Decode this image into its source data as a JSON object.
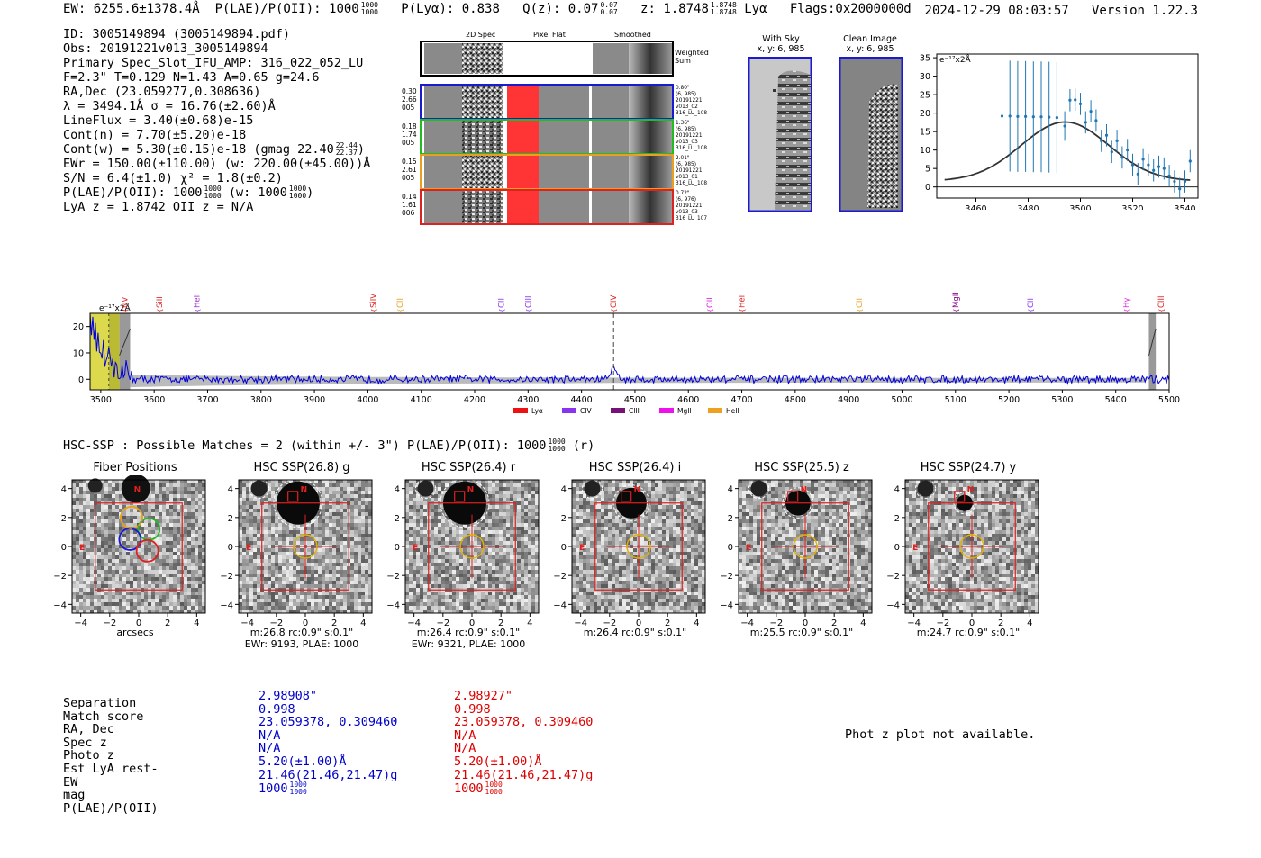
{
  "header": {
    "ew": "EW: 6255.6±1378.4Å",
    "plae_label": "P(LAE)/P(OII): 1000",
    "plae_hi": "1000",
    "plae_lo": "1000",
    "plya": "P(Lyα): 0.838",
    "qz": "Q(z): 0.07",
    "qz_hi": "0.07",
    "qz_lo": "0.07",
    "z": "z: 1.8748",
    "z_hi": "1.8748",
    "z_lo": "1.8748",
    "line": "Lyα",
    "flags": "Flags:0x2000000d",
    "datetime": "2024-12-29 08:03:57",
    "version": "Version 1.22.3"
  },
  "info": {
    "id": "ID: 3005149894 (3005149894.pdf)",
    "obs": "Obs: 20191221v013_3005149894",
    "primary": "Primary Spec_Slot_IFU_AMP: 316_022_052_LU",
    "fit": "F=2.3\"  T=0.129  N=1.43  A=0.65  g=24.6",
    "radec": "RA,Dec (23.059277,0.308636)",
    "lambda": "λ = 3494.1Å  σ = 16.76(±2.60)Å",
    "lineflux": "LineFlux = 3.40(±0.68)e-15",
    "contn": "Cont(n) = 7.70(±5.20)e-18",
    "contw": "Cont(w) = 5.30(±0.15)e-18 (gmag 22.40",
    "contw_hi": "22.44",
    "contw_lo": "22.37",
    "contw_end": ")",
    "ewr": "EWr = 150.00(±110.00) (w: 220.00(±45.00))Å",
    "sn": "S/N = 6.4(±1.0)  χ² = 1.8(±0.2)",
    "plae": "P(LAE)/P(OII): 1000",
    "plae_hi": "1000",
    "plae_lo": "1000",
    "plae_w": "(w: 1000",
    "plae_w_hi": "1000",
    "plae_w_lo": "1000",
    "plae_w_end": ")",
    "lya": "LyA z = 1.8742   OII z = N/A"
  },
  "cutouts": {
    "col_2d": "2D Spec",
    "col_flat": "Pixel Flat",
    "col_smooth": "Smoothed",
    "weighted": "Weighted Sum",
    "fibers": [
      {
        "w": "0.30",
        "a": "2.66",
        "n": "005",
        "side": [
          "0.80\"",
          "(6, 985)",
          "20191221",
          "v013_02",
          "316_LU_108"
        ],
        "color": "#1a1ad0"
      },
      {
        "w": "0.18",
        "a": "1.74",
        "n": "005",
        "side": [
          "1.36\"",
          "(6, 985)",
          "20191221",
          "v013_03",
          "316_LU_108"
        ],
        "color": "#22bb22"
      },
      {
        "w": "0.15",
        "a": "2.61",
        "n": "005",
        "side": [
          "2.01\"",
          "(6, 985)",
          "20191221",
          "v013_01",
          "316_LU_108"
        ],
        "color": "#e8a020"
      },
      {
        "w": "0.14",
        "a": "1.61",
        "n": "006",
        "side": [
          "0.72\"",
          "(6, 976)",
          "20191221",
          "v013_03",
          "316_LU_107"
        ],
        "color": "#dd2222"
      }
    ],
    "with_sky": "With Sky",
    "with_sky_xy": "x, y: 6, 985",
    "clean": "Clean Image",
    "clean_xy": "x, y: 6, 985"
  },
  "zoom_chart_data": {
    "type": "scatter",
    "unit_label": "e⁻¹⁷x2Å",
    "xlim": [
      3445,
      3545
    ],
    "ylim": [
      -3,
      36
    ],
    "xticks": [
      3460,
      3480,
      3500,
      3520,
      3540
    ],
    "yticks": [
      0,
      5,
      10,
      15,
      20,
      25,
      30,
      35
    ],
    "points": [
      {
        "x": 3470,
        "y": 19.2,
        "err": 15
      },
      {
        "x": 3473,
        "y": 19.2,
        "err": 15
      },
      {
        "x": 3476,
        "y": 19.1,
        "err": 15
      },
      {
        "x": 3479,
        "y": 19.1,
        "err": 15
      },
      {
        "x": 3482,
        "y": 19.0,
        "err": 15
      },
      {
        "x": 3485,
        "y": 19.0,
        "err": 15
      },
      {
        "x": 3488,
        "y": 18.9,
        "err": 15
      },
      {
        "x": 3491,
        "y": 18.8,
        "err": 15
      },
      {
        "x": 3494,
        "y": 16.5,
        "err": 4
      },
      {
        "x": 3496,
        "y": 23.5,
        "err": 3
      },
      {
        "x": 3498,
        "y": 23.6,
        "err": 3
      },
      {
        "x": 3500,
        "y": 22.5,
        "err": 3
      },
      {
        "x": 3502,
        "y": 17.5,
        "err": 3
      },
      {
        "x": 3504,
        "y": 20.5,
        "err": 3
      },
      {
        "x": 3506,
        "y": 18.0,
        "err": 3
      },
      {
        "x": 3508,
        "y": 12.5,
        "err": 3
      },
      {
        "x": 3510,
        "y": 14.0,
        "err": 3
      },
      {
        "x": 3512,
        "y": 9.5,
        "err": 3
      },
      {
        "x": 3514,
        "y": 12.5,
        "err": 3
      },
      {
        "x": 3516,
        "y": 8.0,
        "err": 3
      },
      {
        "x": 3518,
        "y": 10.0,
        "err": 3
      },
      {
        "x": 3520,
        "y": 6.0,
        "err": 3
      },
      {
        "x": 3522,
        "y": 3.5,
        "err": 3
      },
      {
        "x": 3524,
        "y": 7.5,
        "err": 3
      },
      {
        "x": 3526,
        "y": 6.0,
        "err": 3
      },
      {
        "x": 3528,
        "y": 4.5,
        "err": 3
      },
      {
        "x": 3530,
        "y": 5.5,
        "err": 3
      },
      {
        "x": 3532,
        "y": 5.0,
        "err": 3
      },
      {
        "x": 3534,
        "y": 3.0,
        "err": 3
      },
      {
        "x": 3536,
        "y": 1.5,
        "err": 3
      },
      {
        "x": 3538,
        "y": -0.5,
        "err": 3
      },
      {
        "x": 3540,
        "y": 1.5,
        "err": 3
      },
      {
        "x": 3542,
        "y": 7.0,
        "err": 3
      }
    ],
    "fit": {
      "mu": 3494.1,
      "sigma": 16.76,
      "amp": 16.0,
      "base": 1.6
    }
  },
  "chart_data": {
    "type": "line",
    "unit_label": "e⁻¹⁷x2Å",
    "xlim": [
      3480,
      5500
    ],
    "ylim": [
      -4,
      25
    ],
    "xticks": [
      3500,
      3600,
      3700,
      3800,
      3900,
      4000,
      4100,
      4200,
      4300,
      4400,
      4500,
      4600,
      4700,
      4800,
      4900,
      5000,
      5100,
      5200,
      5300,
      5400,
      5500
    ],
    "yticks": [
      0,
      10,
      20
    ],
    "marker_line": 4460,
    "lines": [
      {
        "name": "NV",
        "x": 3545,
        "color": "#dd2222"
      },
      {
        "name": "SiII",
        "x": 3610,
        "color": "#dd2222"
      },
      {
        "name": "HeII",
        "x": 3680,
        "color": "#9933cc"
      },
      {
        "name": "SiIV",
        "x": 4010,
        "color": "#dd2222"
      },
      {
        "name": "CII",
        "x": 4060,
        "color": "#e8a020"
      },
      {
        "name": "CII",
        "x": 4250,
        "color": "#8833ee"
      },
      {
        "name": "CIII",
        "x": 4300,
        "color": "#8833ee"
      },
      {
        "name": "CIV",
        "x": 4460,
        "color": "#dd2222"
      },
      {
        "name": "OII",
        "x": 4640,
        "color": "#dd22dd"
      },
      {
        "name": "HeII",
        "x": 4700,
        "color": "#dd2222"
      },
      {
        "name": "CII",
        "x": 4920,
        "color": "#e8a020"
      },
      {
        "name": "MgII",
        "x": 5100,
        "color": "#880088"
      },
      {
        "name": "CII",
        "x": 5240,
        "color": "#8833ee"
      },
      {
        "name": "Hγ",
        "x": 5420,
        "color": "#dd22dd"
      },
      {
        "name": "CIII",
        "x": 5485,
        "color": "#dd2222"
      }
    ],
    "legend": [
      {
        "name": "Lyα",
        "color": "#ee1111"
      },
      {
        "name": "CIV",
        "color": "#8833ee"
      },
      {
        "name": "CIII",
        "color": "#771177"
      },
      {
        "name": "MgII",
        "color": "#ee11ee"
      },
      {
        "name": "HeII",
        "color": "#f0a020"
      }
    ]
  },
  "hsc": {
    "title": "HSC-SSP : Possible Matches = 2 (within +/- 3\")  P(LAE)/P(OII): 1000",
    "title_hi": "1000",
    "title_lo": "1000",
    "title_end": "(r)",
    "axis_label": "arcsecs",
    "ticks": [
      "−4",
      "−2",
      "0",
      "2",
      "4"
    ],
    "yticks": [
      "4",
      "2",
      "0",
      "−2",
      "−4"
    ],
    "panels": [
      {
        "title": "Fiber Positions",
        "cap1": "",
        "cap2": ""
      },
      {
        "title": "HSC SSP(26.8) g",
        "cap1": "m:26.8 rc:0.9\"  s:0.1\"",
        "cap2": "EWr: 9193, PLAE: 1000"
      },
      {
        "title": "HSC SSP(26.4) r",
        "cap1": "m:26.4 rc:0.9\"  s:0.1\"",
        "cap2": "EWr: 9321, PLAE: 1000"
      },
      {
        "title": "HSC SSP(26.4) i",
        "cap1": "m:26.4 rc:0.9\"  s:0.1\"",
        "cap2": ""
      },
      {
        "title": "HSC SSP(25.5) z",
        "cap1": "m:25.5 rc:0.9\"  s:0.1\"",
        "cap2": ""
      },
      {
        "title": "HSC SSP(24.7) y",
        "cap1": "m:24.7 rc:0.9\"  s:0.1\"",
        "cap2": ""
      }
    ]
  },
  "matches": {
    "labels": [
      "Separation",
      "Match score",
      "RA, Dec",
      "Spec z",
      "Photo z",
      "Est LyA rest-EW",
      "mag",
      "P(LAE)/P(OII)"
    ],
    "m1": {
      "color": "#0000cc",
      "values": [
        "2.98908\"",
        "0.998",
        "23.059378, 0.309460",
        "N/A",
        "N/A",
        "5.20(±1.00)Å",
        "21.46(21.46,21.47)g",
        "1000"
      ],
      "plae_hi": "1000",
      "plae_lo": "1000"
    },
    "m2": {
      "color": "#dd0000",
      "values": [
        "2.98927\"",
        "0.998",
        "23.059378, 0.309460",
        "N/A",
        "N/A",
        "5.20(±1.00)Å",
        "21.46(21.46,21.47)g",
        "1000"
      ],
      "plae_hi": "1000",
      "plae_lo": "1000"
    },
    "phot_msg": "Phot z plot not available."
  }
}
